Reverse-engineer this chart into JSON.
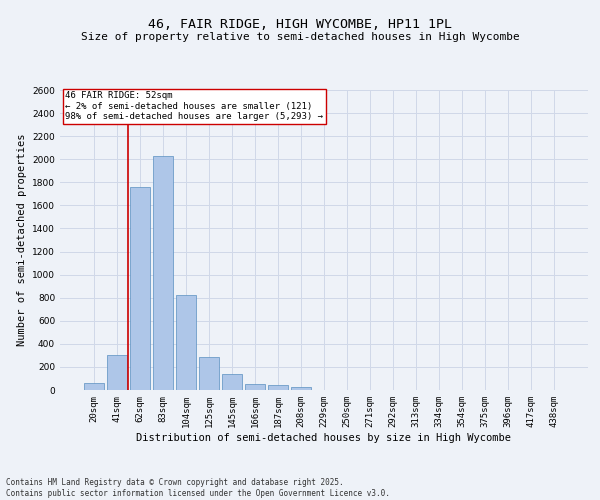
{
  "title": "46, FAIR RIDGE, HIGH WYCOMBE, HP11 1PL",
  "subtitle": "Size of property relative to semi-detached houses in High Wycombe",
  "xlabel": "Distribution of semi-detached houses by size in High Wycombe",
  "ylabel": "Number of semi-detached properties",
  "categories": [
    "20sqm",
    "41sqm",
    "62sqm",
    "83sqm",
    "104sqm",
    "125sqm",
    "145sqm",
    "166sqm",
    "187sqm",
    "208sqm",
    "229sqm",
    "250sqm",
    "271sqm",
    "292sqm",
    "313sqm",
    "334sqm",
    "354sqm",
    "375sqm",
    "396sqm",
    "417sqm",
    "438sqm"
  ],
  "values": [
    60,
    300,
    1760,
    2030,
    820,
    285,
    140,
    50,
    45,
    30,
    0,
    0,
    0,
    0,
    0,
    0,
    0,
    0,
    0,
    0,
    0
  ],
  "bar_color": "#aec6e8",
  "bar_edge_color": "#5a8fc0",
  "vline_x": 1.5,
  "vline_color": "#cc0000",
  "annotation_box_text": "46 FAIR RIDGE: 52sqm\n← 2% of semi-detached houses are smaller (121)\n98% of semi-detached houses are larger (5,293) →",
  "ylim": [
    0,
    2600
  ],
  "yticks": [
    0,
    200,
    400,
    600,
    800,
    1000,
    1200,
    1400,
    1600,
    1800,
    2000,
    2200,
    2400,
    2600
  ],
  "grid_color": "#d0d8e8",
  "background_color": "#eef2f8",
  "footnote": "Contains HM Land Registry data © Crown copyright and database right 2025.\nContains public sector information licensed under the Open Government Licence v3.0.",
  "title_fontsize": 9.5,
  "subtitle_fontsize": 8,
  "axis_label_fontsize": 7.5,
  "tick_fontsize": 6.5,
  "annotation_fontsize": 6.5,
  "footnote_fontsize": 5.5
}
